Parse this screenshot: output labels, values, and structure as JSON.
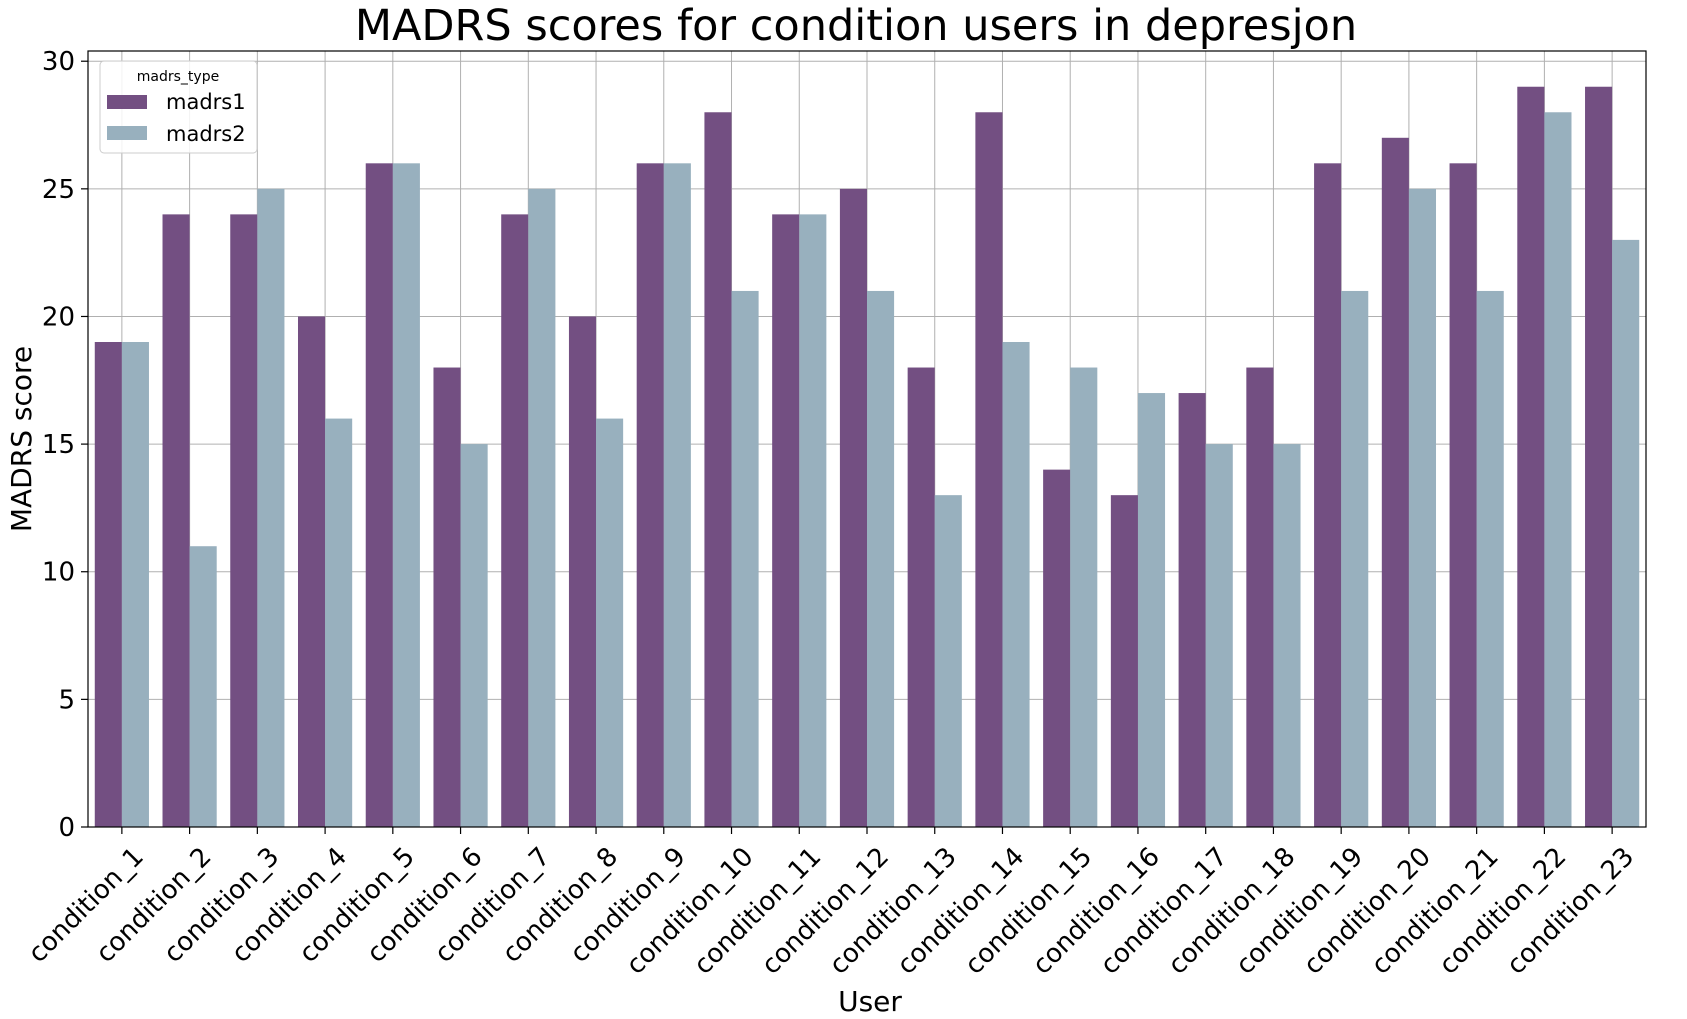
{
  "chart_data": {
    "type": "bar",
    "title": "MADRS scores for condition users in depresjon",
    "xlabel": "User",
    "ylabel": "MADRS score",
    "ylim": [
      0,
      30.4
    ],
    "yticks": [
      0,
      5,
      10,
      15,
      20,
      25,
      30
    ],
    "grid": true,
    "legend": {
      "title": "madrs_type",
      "placement": "top-left"
    },
    "categories": [
      "condition_1",
      "condition_2",
      "condition_3",
      "condition_4",
      "condition_5",
      "condition_6",
      "condition_7",
      "condition_8",
      "condition_9",
      "condition_10",
      "condition_11",
      "condition_12",
      "condition_13",
      "condition_14",
      "condition_15",
      "condition_16",
      "condition_17",
      "condition_18",
      "condition_19",
      "condition_20",
      "condition_21",
      "condition_22",
      "condition_23"
    ],
    "series": [
      {
        "name": "madrs1",
        "color": "#734f82",
        "values": [
          19,
          24,
          24,
          20,
          26,
          18,
          24,
          20,
          26,
          28,
          24,
          25,
          18,
          28,
          14,
          13,
          17,
          18,
          26,
          27,
          26,
          29,
          29
        ]
      },
      {
        "name": "madrs2",
        "color": "#98b0be",
        "values": [
          19,
          11,
          25,
          16,
          26,
          15,
          25,
          16,
          26,
          21,
          24,
          21,
          13,
          19,
          18,
          17,
          15,
          15,
          21,
          25,
          21,
          28,
          23
        ]
      }
    ]
  }
}
